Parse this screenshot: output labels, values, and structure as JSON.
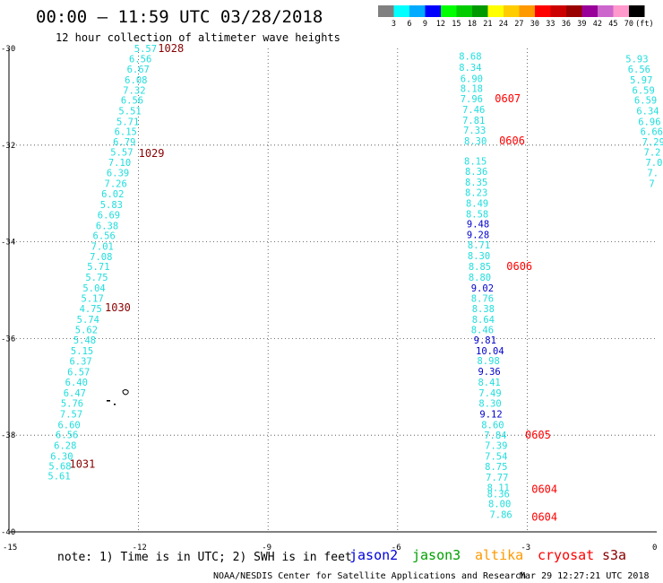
{
  "title": "00:00 – 11:59 UTC 03/28/2018",
  "subtitle": "12 hour collection of altimeter wave heights",
  "note": "note: 1) Time is in UTC; 2) SWH is in feet",
  "footer_left": "NOAA/NESDIS Center for Satellite Applications and Research",
  "footer_right": "Mar 29 12:27:21 UTC 2018",
  "satellites": [
    {
      "name": "jason2",
      "color": "#0000dd"
    },
    {
      "name": "jason3",
      "color": "#00a000"
    },
    {
      "name": "altika",
      "color": "#ff9900"
    },
    {
      "name": "cryosat",
      "color": "#ff0000"
    },
    {
      "name": "s3a",
      "color": "#880000"
    }
  ],
  "legend": {
    "labels": [
      "3",
      "6",
      "9",
      "12",
      "15",
      "18",
      "21",
      "24",
      "27",
      "30",
      "33",
      "36",
      "39",
      "42",
      "45",
      "70",
      "(ft)"
    ],
    "colors": [
      "#808080",
      "#00ffff",
      "#00aaff",
      "#0000ff",
      "#00ff00",
      "#00cc00",
      "#009900",
      "#ffff00",
      "#ffcc00",
      "#ff9900",
      "#ff0000",
      "#cc0000",
      "#990000",
      "#990099",
      "#cc66cc",
      "#ff99cc",
      "#000000"
    ]
  },
  "chart_data": {
    "type": "scatter",
    "xlim": [
      -15,
      0
    ],
    "ylim": [
      -40,
      -30
    ],
    "x_ticks": [
      -15,
      -12,
      -9,
      -6,
      -3,
      0
    ],
    "y_ticks": [
      -30,
      -32,
      -34,
      -36,
      -38,
      -40
    ],
    "grid": true,
    "tracks": [
      {
        "name": "track1",
        "points": [
          {
            "lon": -12.1,
            "lat": -30.0,
            "v": "5.57",
            "c": "#22dddd"
          },
          {
            "lon": -12.22,
            "lat": -30.21,
            "v": "6.56",
            "c": "#22dddd"
          },
          {
            "lon": -12.27,
            "lat": -30.43,
            "v": "6.67",
            "c": "#22dddd"
          },
          {
            "lon": -12.32,
            "lat": -30.65,
            "v": "6.08",
            "c": "#22dddd"
          },
          {
            "lon": -12.36,
            "lat": -30.86,
            "v": "7.32",
            "c": "#22dddd"
          },
          {
            "lon": -12.41,
            "lat": -31.07,
            "v": "6.56",
            "c": "#22dddd"
          },
          {
            "lon": -12.46,
            "lat": -31.29,
            "v": "5.51",
            "c": "#22dddd"
          },
          {
            "lon": -12.51,
            "lat": -31.51,
            "v": "5.71",
            "c": "#22dddd"
          },
          {
            "lon": -12.56,
            "lat": -31.72,
            "v": "6.15",
            "c": "#22dddd"
          },
          {
            "lon": -12.59,
            "lat": -31.93,
            "v": "6.79",
            "c": "#22dddd"
          },
          {
            "lon": -12.65,
            "lat": -32.14,
            "v": "5.57",
            "c": "#22dddd"
          },
          {
            "lon": -12.7,
            "lat": -32.36,
            "v": "7.10",
            "c": "#22dddd"
          },
          {
            "lon": -12.74,
            "lat": -32.57,
            "v": "6.39",
            "c": "#22dddd"
          },
          {
            "lon": -12.79,
            "lat": -32.79,
            "v": "7.26",
            "c": "#22dddd"
          },
          {
            "lon": -12.86,
            "lat": -33.01,
            "v": "6.02",
            "c": "#22dddd"
          },
          {
            "lon": -12.89,
            "lat": -33.23,
            "v": "5.83",
            "c": "#22dddd"
          },
          {
            "lon": -12.95,
            "lat": -33.44,
            "v": "6.69",
            "c": "#22dddd"
          },
          {
            "lon": -12.99,
            "lat": -33.66,
            "v": "6.38",
            "c": "#22dddd"
          },
          {
            "lon": -13.06,
            "lat": -33.87,
            "v": "6.56",
            "c": "#22dddd"
          },
          {
            "lon": -13.1,
            "lat": -34.09,
            "v": "7.01",
            "c": "#22dddd"
          },
          {
            "lon": -13.13,
            "lat": -34.3,
            "v": "7.08",
            "c": "#22dddd"
          },
          {
            "lon": -13.19,
            "lat": -34.51,
            "v": "5.71",
            "c": "#22dddd"
          },
          {
            "lon": -13.23,
            "lat": -34.73,
            "v": "5.75",
            "c": "#22dddd"
          },
          {
            "lon": -13.29,
            "lat": -34.95,
            "v": "5.04",
            "c": "#22dddd"
          },
          {
            "lon": -13.33,
            "lat": -35.17,
            "v": "5.17",
            "c": "#22dddd"
          },
          {
            "lon": -13.37,
            "lat": -35.38,
            "v": "4.75",
            "c": "#22dddd"
          },
          {
            "lon": -13.43,
            "lat": -35.6,
            "v": "5.74",
            "c": "#22dddd"
          },
          {
            "lon": -13.47,
            "lat": -35.82,
            "v": "5.62",
            "c": "#22dddd"
          },
          {
            "lon": -13.51,
            "lat": -36.03,
            "v": "5.48",
            "c": "#22dddd"
          },
          {
            "lon": -13.57,
            "lat": -36.25,
            "v": "5.15",
            "c": "#22dddd"
          },
          {
            "lon": -13.6,
            "lat": -36.47,
            "v": "6.37",
            "c": "#22dddd"
          },
          {
            "lon": -13.65,
            "lat": -36.69,
            "v": "6.57",
            "c": "#22dddd"
          },
          {
            "lon": -13.7,
            "lat": -36.9,
            "v": "6.40",
            "c": "#22dddd"
          },
          {
            "lon": -13.74,
            "lat": -37.12,
            "v": "6.47",
            "c": "#22dddd"
          },
          {
            "lon": -13.8,
            "lat": -37.34,
            "v": "5.76",
            "c": "#22dddd"
          },
          {
            "lon": -13.82,
            "lat": -37.56,
            "v": "7.57",
            "c": "#22dddd"
          },
          {
            "lon": -13.87,
            "lat": -37.78,
            "v": "6.60",
            "c": "#22dddd"
          },
          {
            "lon": -13.92,
            "lat": -37.99,
            "v": "6.56",
            "c": "#22dddd"
          },
          {
            "lon": -13.96,
            "lat": -38.21,
            "v": "6.28",
            "c": "#22dddd"
          },
          {
            "lon": -14.04,
            "lat": -38.43,
            "v": "6.30",
            "c": "#22dddd"
          },
          {
            "lon": -14.08,
            "lat": -38.64,
            "v": "5.68",
            "c": "#22dddd"
          },
          {
            "lon": -14.1,
            "lat": -38.84,
            "v": "5.61",
            "c": "#22dddd"
          }
        ],
        "times": [
          {
            "lon": -11.55,
            "lat": -30.0,
            "t": "1028",
            "c": "#880000"
          },
          {
            "lon": -12.0,
            "lat": -32.17,
            "t": "1029",
            "c": "#880000"
          },
          {
            "lon": -12.78,
            "lat": -35.36,
            "t": "1030",
            "c": "#880000"
          },
          {
            "lon": -13.6,
            "lat": -38.6,
            "t": "1031",
            "c": "#880000"
          }
        ]
      },
      {
        "name": "track2",
        "points": [
          {
            "lon": -4.58,
            "lat": -30.16,
            "v": "8.68",
            "c": "#22dddd"
          },
          {
            "lon": -4.58,
            "lat": -30.39,
            "v": "8.34",
            "c": "#22dddd"
          },
          {
            "lon": -4.55,
            "lat": -30.62,
            "v": "6.90",
            "c": "#22dddd"
          },
          {
            "lon": -4.55,
            "lat": -30.83,
            "v": "8.18",
            "c": "#22dddd"
          },
          {
            "lon": -4.55,
            "lat": -31.04,
            "v": "7.96",
            "c": "#22dddd"
          },
          {
            "lon": -4.5,
            "lat": -31.26,
            "v": "7.46",
            "c": "#22dddd"
          },
          {
            "lon": -4.5,
            "lat": -31.48,
            "v": "7.81",
            "c": "#22dddd"
          },
          {
            "lon": -4.48,
            "lat": -31.69,
            "v": "7.33",
            "c": "#22dddd"
          },
          {
            "lon": -4.46,
            "lat": -31.91,
            "v": "8.30",
            "c": "#22dddd"
          },
          {
            "lon": -4.46,
            "lat": -32.33,
            "v": "8.15",
            "c": "#22dddd"
          },
          {
            "lon": -4.44,
            "lat": -32.54,
            "v": "8.36",
            "c": "#22dddd"
          },
          {
            "lon": -4.44,
            "lat": -32.76,
            "v": "8.35",
            "c": "#22dddd"
          },
          {
            "lon": -4.44,
            "lat": -32.98,
            "v": "8.23",
            "c": "#22dddd"
          },
          {
            "lon": -4.42,
            "lat": -33.2,
            "v": "8.49",
            "c": "#22dddd"
          },
          {
            "lon": -4.42,
            "lat": -33.42,
            "v": "8.58",
            "c": "#22dddd"
          },
          {
            "lon": -4.4,
            "lat": -33.63,
            "v": "9.48",
            "c": "#0000cc"
          },
          {
            "lon": -4.4,
            "lat": -33.85,
            "v": "9.28",
            "c": "#0000cc"
          },
          {
            "lon": -4.38,
            "lat": -34.06,
            "v": "8.71",
            "c": "#22dddd"
          },
          {
            "lon": -4.38,
            "lat": -34.29,
            "v": "8.30",
            "c": "#22dddd"
          },
          {
            "lon": -4.36,
            "lat": -34.51,
            "v": "8.85",
            "c": "#22dddd"
          },
          {
            "lon": -4.36,
            "lat": -34.73,
            "v": "8.80",
            "c": "#22dddd"
          },
          {
            "lon": -4.3,
            "lat": -34.95,
            "v": "9.02",
            "c": "#0000cc"
          },
          {
            "lon": -4.3,
            "lat": -35.17,
            "v": "8.76",
            "c": "#22dddd"
          },
          {
            "lon": -4.28,
            "lat": -35.38,
            "v": "8.38",
            "c": "#22dddd"
          },
          {
            "lon": -4.28,
            "lat": -35.6,
            "v": "8.64",
            "c": "#22dddd"
          },
          {
            "lon": -4.3,
            "lat": -35.82,
            "v": "8.46",
            "c": "#22dddd"
          },
          {
            "lon": -4.24,
            "lat": -36.03,
            "v": "9.81",
            "c": "#0000cc"
          },
          {
            "lon": -4.19,
            "lat": -36.25,
            "v": "10.04",
            "c": "#0000cc"
          },
          {
            "lon": -4.16,
            "lat": -36.46,
            "v": "8.98",
            "c": "#22dddd"
          },
          {
            "lon": -4.14,
            "lat": -36.68,
            "v": "9.36",
            "c": "#0000cc"
          },
          {
            "lon": -4.14,
            "lat": -36.9,
            "v": "8.41",
            "c": "#22dddd"
          },
          {
            "lon": -4.12,
            "lat": -37.12,
            "v": "7.49",
            "c": "#22dddd"
          },
          {
            "lon": -4.12,
            "lat": -37.34,
            "v": "8.30",
            "c": "#22dddd"
          },
          {
            "lon": -4.1,
            "lat": -37.56,
            "v": "9.12",
            "c": "#0000cc"
          },
          {
            "lon": -4.06,
            "lat": -37.78,
            "v": "8.60",
            "c": "#22dddd"
          },
          {
            "lon": -4.0,
            "lat": -38.0,
            "v": "7.84",
            "c": "#22dddd"
          },
          {
            "lon": -3.98,
            "lat": -38.21,
            "v": "7.39",
            "c": "#22dddd"
          },
          {
            "lon": -3.98,
            "lat": -38.43,
            "v": "7.54",
            "c": "#22dddd"
          },
          {
            "lon": -3.98,
            "lat": -38.65,
            "v": "8.75",
            "c": "#22dddd"
          },
          {
            "lon": -3.96,
            "lat": -38.87,
            "v": "7.77",
            "c": "#22dddd"
          },
          {
            "lon": -3.93,
            "lat": -39.08,
            "v": "8.11",
            "c": "#22dddd"
          },
          {
            "lon": -3.93,
            "lat": -39.21,
            "v": "8.36",
            "c": "#22dddd"
          },
          {
            "lon": -3.9,
            "lat": -39.42,
            "v": "8.00",
            "c": "#22dddd"
          },
          {
            "lon": -3.87,
            "lat": -39.64,
            "v": "7.86",
            "c": "#22dddd"
          }
        ],
        "times": [
          {
            "lon": -3.75,
            "lat": -31.04,
            "t": "0607",
            "c": "#ff0000"
          },
          {
            "lon": -3.65,
            "lat": -31.91,
            "t": "0606",
            "c": "#ff0000"
          },
          {
            "lon": -3.48,
            "lat": -34.51,
            "t": "0606",
            "c": "#ff0000"
          },
          {
            "lon": -3.05,
            "lat": -38.0,
            "t": "0605",
            "c": "#ff0000"
          },
          {
            "lon": -2.9,
            "lat": -39.12,
            "t": "0604",
            "c": "#ff0000"
          },
          {
            "lon": -2.9,
            "lat": -39.69,
            "t": "0604",
            "c": "#ff0000"
          }
        ]
      },
      {
        "name": "track3",
        "points": [
          {
            "lon": -0.72,
            "lat": -30.21,
            "v": "5.93",
            "c": "#22dddd"
          },
          {
            "lon": -0.67,
            "lat": -30.43,
            "v": "6.56",
            "c": "#22dddd"
          },
          {
            "lon": -0.62,
            "lat": -30.65,
            "v": "5.97",
            "c": "#22dddd"
          },
          {
            "lon": -0.57,
            "lat": -30.86,
            "v": "6.59",
            "c": "#22dddd"
          },
          {
            "lon": -0.52,
            "lat": -31.07,
            "v": "6.59",
            "c": "#22dddd"
          },
          {
            "lon": -0.47,
            "lat": -31.29,
            "v": "6.34",
            "c": "#22dddd"
          },
          {
            "lon": -0.43,
            "lat": -31.51,
            "v": "6.96",
            "c": "#22dddd"
          },
          {
            "lon": -0.38,
            "lat": -31.72,
            "v": "6.66",
            "c": "#22dddd"
          },
          {
            "lon": -0.34,
            "lat": -31.93,
            "v": "7.29",
            "c": "#22dddd"
          },
          {
            "lon": -0.3,
            "lat": -32.14,
            "v": "7.2",
            "c": "#22dddd"
          },
          {
            "lon": -0.26,
            "lat": -32.36,
            "v": "7.0",
            "c": "#22dddd"
          },
          {
            "lon": -0.22,
            "lat": -32.57,
            "v": "7.",
            "c": "#22dddd"
          },
          {
            "lon": -0.18,
            "lat": -32.79,
            "v": "7",
            "c": "#22dddd"
          }
        ],
        "times": []
      }
    ]
  }
}
